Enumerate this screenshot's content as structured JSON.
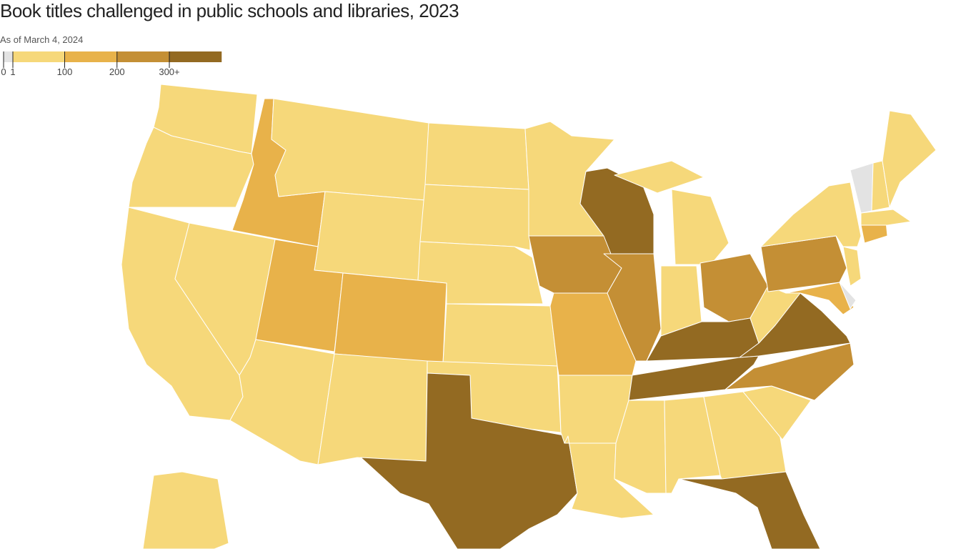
{
  "chart_data": {
    "type": "choropleth",
    "title": "Book titles challenged in public schools and libraries, 2023",
    "subtitle": "As of March 4, 2024",
    "legend_ticks": [
      0,
      1,
      100,
      200,
      {
        "value": 300,
        "label": "300+"
      }
    ],
    "legend_colors": [
      "#e3e3e3",
      "#f6d87a",
      "#e8b24a",
      "#c48f35",
      "#936a22"
    ]
  }
}
